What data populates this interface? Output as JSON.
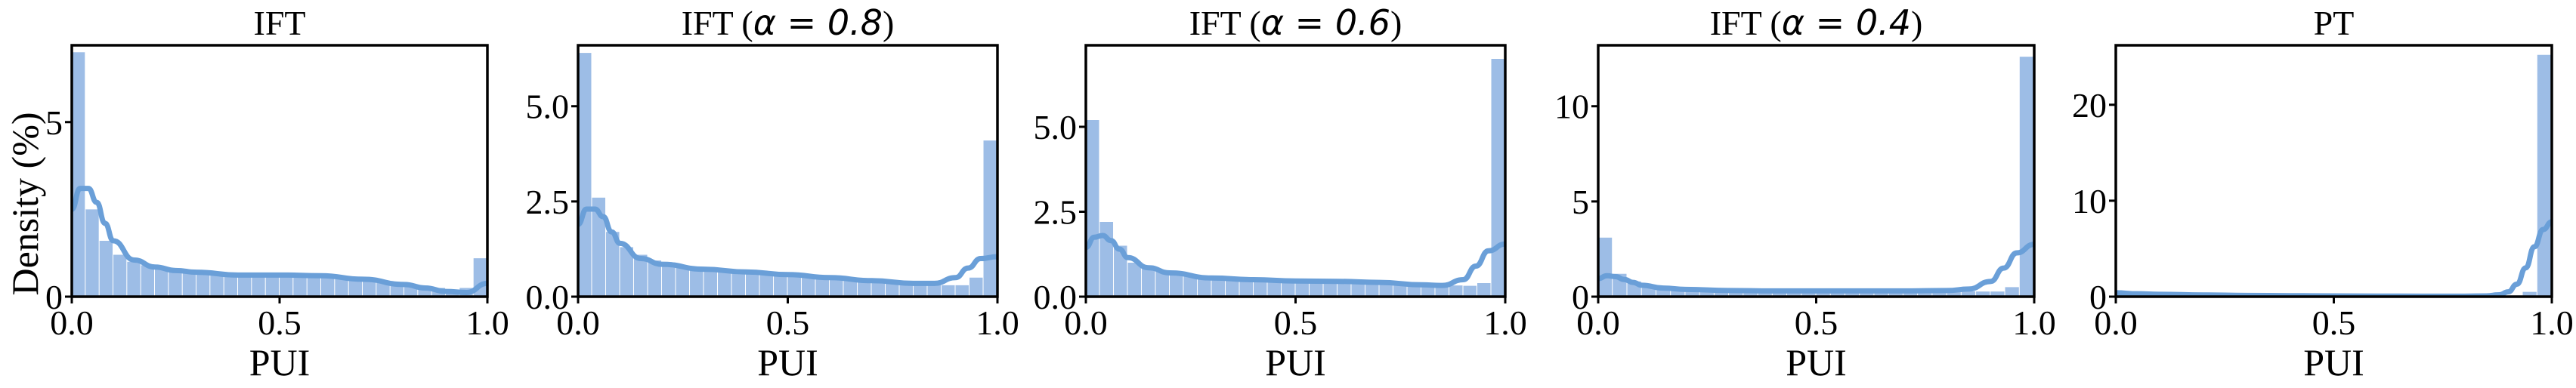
{
  "figure": {
    "ylabel": "Density (%)",
    "bar_color": "#9dbde6",
    "kde_color": "#6a9fd8"
  },
  "chart_data": [
    {
      "type": "bar",
      "title": "IFT",
      "title_math": "",
      "xlabel": "PUI",
      "ylabel": "Density (%)",
      "xlim": [
        0,
        1
      ],
      "ylim": [
        0,
        7.2
      ],
      "xticks": [
        0.0,
        0.5,
        1.0
      ],
      "xtick_labels": [
        "0.0",
        "0.5",
        "1.0"
      ],
      "yticks": [
        0,
        5
      ],
      "ytick_labels": [
        "0",
        "5"
      ],
      "bin_edges": [
        0,
        0.0333,
        0.0667,
        0.1,
        0.1333,
        0.1667,
        0.2,
        0.2333,
        0.2667,
        0.3,
        0.3333,
        0.3667,
        0.4,
        0.4333,
        0.4667,
        0.5,
        0.5333,
        0.5667,
        0.6,
        0.6333,
        0.6667,
        0.7,
        0.7333,
        0.7667,
        0.8,
        0.8333,
        0.8667,
        0.9,
        0.9333,
        0.9667,
        1.0
      ],
      "values": [
        7.0,
        2.5,
        1.6,
        1.2,
        1.0,
        0.9,
        0.85,
        0.8,
        0.75,
        0.7,
        0.7,
        0.68,
        0.66,
        0.65,
        0.65,
        0.64,
        0.62,
        0.6,
        0.58,
        0.55,
        0.52,
        0.5,
        0.45,
        0.4,
        0.35,
        0.3,
        0.25,
        0.2,
        0.25,
        1.1
      ],
      "kde_x": [
        0,
        0.02,
        0.04,
        0.06,
        0.08,
        0.1,
        0.15,
        0.2,
        0.25,
        0.3,
        0.4,
        0.5,
        0.6,
        0.7,
        0.8,
        0.85,
        0.9,
        0.95,
        1.0
      ],
      "kde_y": [
        2.5,
        3.1,
        3.1,
        2.7,
        2.1,
        1.6,
        1.05,
        0.85,
        0.75,
        0.7,
        0.62,
        0.62,
        0.6,
        0.5,
        0.35,
        0.25,
        0.15,
        0.12,
        0.38
      ]
    },
    {
      "type": "bar",
      "title": "IFT (",
      "title_math": "α = 0.8",
      "title_end": ")",
      "xlabel": "PUI",
      "ylabel": "",
      "xlim": [
        0,
        1
      ],
      "ylim": [
        0,
        6.6
      ],
      "xticks": [
        0.0,
        0.5,
        1.0
      ],
      "xtick_labels": [
        "0.0",
        "0.5",
        "1.0"
      ],
      "yticks": [
        0,
        2.5,
        5.0
      ],
      "ytick_labels": [
        "0.0",
        "2.5",
        "5.0"
      ],
      "bin_edges": [
        0,
        0.0333,
        0.0667,
        0.1,
        0.1333,
        0.1667,
        0.2,
        0.2333,
        0.2667,
        0.3,
        0.3333,
        0.3667,
        0.4,
        0.4333,
        0.4667,
        0.5,
        0.5333,
        0.5667,
        0.6,
        0.6333,
        0.6667,
        0.7,
        0.7333,
        0.7667,
        0.8,
        0.8333,
        0.8667,
        0.9,
        0.9333,
        0.9667,
        1.0
      ],
      "values": [
        6.4,
        2.6,
        1.7,
        1.3,
        1.1,
        0.95,
        0.85,
        0.8,
        0.75,
        0.7,
        0.68,
        0.66,
        0.64,
        0.6,
        0.58,
        0.55,
        0.52,
        0.5,
        0.48,
        0.46,
        0.44,
        0.42,
        0.4,
        0.38,
        0.35,
        0.33,
        0.3,
        0.3,
        0.5,
        4.1
      ],
      "kde_x": [
        0,
        0.02,
        0.04,
        0.06,
        0.08,
        0.1,
        0.15,
        0.2,
        0.3,
        0.4,
        0.5,
        0.6,
        0.7,
        0.8,
        0.85,
        0.9,
        0.93,
        0.96,
        1.0
      ],
      "kde_y": [
        1.9,
        2.3,
        2.3,
        2.1,
        1.7,
        1.4,
        1.0,
        0.85,
        0.72,
        0.65,
        0.58,
        0.5,
        0.42,
        0.35,
        0.35,
        0.5,
        0.75,
        1.0,
        1.05
      ]
    },
    {
      "type": "bar",
      "title": "IFT (",
      "title_math": "α = 0.6",
      "title_end": ")",
      "xlabel": "PUI",
      "ylabel": "",
      "xlim": [
        0,
        1
      ],
      "ylim": [
        0,
        7.4
      ],
      "xticks": [
        0.0,
        0.5,
        1.0
      ],
      "xtick_labels": [
        "0.0",
        "0.5",
        "1.0"
      ],
      "yticks": [
        0,
        2.5,
        5.0
      ],
      "ytick_labels": [
        "0.0",
        "2.5",
        "5.0"
      ],
      "bin_edges": [
        0,
        0.0333,
        0.0667,
        0.1,
        0.1333,
        0.1667,
        0.2,
        0.2333,
        0.2667,
        0.3,
        0.3333,
        0.3667,
        0.4,
        0.4333,
        0.4667,
        0.5,
        0.5333,
        0.5667,
        0.6,
        0.6333,
        0.6667,
        0.7,
        0.7333,
        0.7667,
        0.8,
        0.8333,
        0.8667,
        0.9,
        0.9333,
        0.9667,
        1.0
      ],
      "values": [
        5.2,
        2.2,
        1.5,
        1.0,
        0.85,
        0.75,
        0.7,
        0.65,
        0.6,
        0.58,
        0.55,
        0.52,
        0.5,
        0.5,
        0.48,
        0.47,
        0.46,
        0.45,
        0.45,
        0.44,
        0.43,
        0.42,
        0.4,
        0.38,
        0.36,
        0.35,
        0.33,
        0.32,
        0.4,
        7.0
      ],
      "kde_x": [
        0,
        0.02,
        0.04,
        0.06,
        0.08,
        0.1,
        0.15,
        0.2,
        0.3,
        0.4,
        0.5,
        0.6,
        0.7,
        0.8,
        0.85,
        0.9,
        0.93,
        0.96,
        1.0
      ],
      "kde_y": [
        1.45,
        1.75,
        1.8,
        1.65,
        1.4,
        1.15,
        0.85,
        0.7,
        0.55,
        0.5,
        0.46,
        0.45,
        0.42,
        0.35,
        0.33,
        0.5,
        0.9,
        1.35,
        1.55
      ]
    },
    {
      "type": "bar",
      "title": "IFT (",
      "title_math": "α = 0.4",
      "title_end": ")",
      "xlabel": "PUI",
      "ylabel": "",
      "xlim": [
        0,
        1
      ],
      "ylim": [
        0,
        13.2
      ],
      "xticks": [
        0.0,
        0.5,
        1.0
      ],
      "xtick_labels": [
        "0.0",
        "0.5",
        "1.0"
      ],
      "yticks": [
        0,
        5,
        10
      ],
      "ytick_labels": [
        "0",
        "5",
        "10"
      ],
      "bin_edges": [
        0,
        0.0333,
        0.0667,
        0.1,
        0.1333,
        0.1667,
        0.2,
        0.2333,
        0.2667,
        0.3,
        0.3333,
        0.3667,
        0.4,
        0.4333,
        0.4667,
        0.5,
        0.5333,
        0.5667,
        0.6,
        0.6333,
        0.6667,
        0.7,
        0.7333,
        0.7667,
        0.8,
        0.8333,
        0.8667,
        0.9,
        0.9333,
        0.9667,
        1.0
      ],
      "values": [
        3.1,
        1.2,
        0.8,
        0.55,
        0.45,
        0.4,
        0.38,
        0.35,
        0.33,
        0.32,
        0.31,
        0.3,
        0.3,
        0.29,
        0.29,
        0.28,
        0.28,
        0.28,
        0.28,
        0.28,
        0.28,
        0.28,
        0.28,
        0.28,
        0.28,
        0.28,
        0.27,
        0.27,
        0.5,
        12.6
      ],
      "kde_x": [
        0,
        0.02,
        0.04,
        0.06,
        0.08,
        0.1,
        0.15,
        0.2,
        0.3,
        0.4,
        0.5,
        0.6,
        0.7,
        0.8,
        0.85,
        0.9,
        0.93,
        0.96,
        1.0
      ],
      "kde_y": [
        0.95,
        1.1,
        1.05,
        0.9,
        0.75,
        0.6,
        0.45,
        0.38,
        0.32,
        0.3,
        0.3,
        0.3,
        0.3,
        0.32,
        0.4,
        0.8,
        1.5,
        2.3,
        2.75
      ]
    },
    {
      "type": "bar",
      "title": "PT",
      "title_math": "",
      "xlabel": "PUI",
      "ylabel": "",
      "xlim": [
        0,
        1
      ],
      "ylim": [
        0,
        26.2
      ],
      "xticks": [
        0.0,
        0.5,
        1.0
      ],
      "xtick_labels": [
        "0.0",
        "0.5",
        "1.0"
      ],
      "yticks": [
        0,
        10,
        20
      ],
      "ytick_labels": [
        "0",
        "10",
        "20"
      ],
      "bin_edges": [
        0,
        0.0333,
        0.0667,
        0.1,
        0.1333,
        0.1667,
        0.2,
        0.2333,
        0.2667,
        0.3,
        0.3333,
        0.3667,
        0.4,
        0.4333,
        0.4667,
        0.5,
        0.5333,
        0.5667,
        0.6,
        0.6333,
        0.6667,
        0.7,
        0.7333,
        0.7667,
        0.8,
        0.8333,
        0.8667,
        0.9,
        0.9333,
        0.9667,
        1.0
      ],
      "values": [
        0.6,
        0.35,
        0.25,
        0.2,
        0.18,
        0.16,
        0.15,
        0.14,
        0.13,
        0.12,
        0.12,
        0.11,
        0.11,
        0.1,
        0.1,
        0.1,
        0.1,
        0.1,
        0.1,
        0.1,
        0.1,
        0.1,
        0.1,
        0.1,
        0.1,
        0.1,
        0.1,
        0.12,
        0.5,
        25.2
      ],
      "kde_x": [
        0,
        0.05,
        0.1,
        0.2,
        0.3,
        0.4,
        0.5,
        0.6,
        0.7,
        0.8,
        0.85,
        0.88,
        0.9,
        0.92,
        0.94,
        0.96,
        0.98,
        1.0
      ],
      "kde_y": [
        0.4,
        0.3,
        0.25,
        0.18,
        0.13,
        0.1,
        0.08,
        0.06,
        0.05,
        0.05,
        0.08,
        0.2,
        0.5,
        1.3,
        3.0,
        5.2,
        7.0,
        7.8
      ]
    }
  ]
}
